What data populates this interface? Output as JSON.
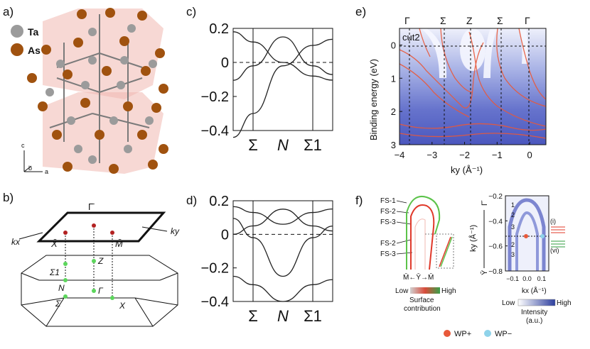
{
  "figure": {
    "panels": {
      "a": {
        "label": "a)",
        "legend": [
          {
            "symbol": "Ta",
            "color": "#9b9b9b"
          },
          {
            "symbol": "As",
            "color": "#a0520f"
          }
        ],
        "axes": [
          "c",
          "b",
          "a"
        ]
      },
      "b": {
        "label": "b)",
        "points": [
          "Γ̄",
          "X̄",
          "M̄",
          "Σ1",
          "Z",
          "N",
          "Γ",
          "Σ",
          "X"
        ],
        "axes": [
          "kx",
          "ky"
        ]
      },
      "c": {
        "label": "c)"
      },
      "d": {
        "label": "d)"
      },
      "e": {
        "label": "e)",
        "top_labels": [
          "Γ",
          "Σ",
          "Z",
          "Σ",
          "Γ"
        ],
        "cut_label": "cut2",
        "ylabel": "Binding energy (eV)",
        "xlabel": "ky (Å⁻¹)"
      },
      "f": {
        "label": "f)",
        "left_labels": [
          "FS-1",
          "FS-2",
          "FS-3",
          "FS-2",
          "FS-3"
        ],
        "bottom_path": "M̄←Ȳ→M̄",
        "colorbar_left": {
          "low": "Low",
          "high": "High",
          "caption1": "Surface",
          "caption2": "contribution"
        },
        "colorbar_right": {
          "low": "Low",
          "high": "High",
          "caption1": "Intensity",
          "caption2": "(a.u.)"
        },
        "right_ylabel": "ky (Å⁻¹)",
        "right_xlabel": "kx (Å⁻¹)",
        "right_top": "Γ̄",
        "right_bottom": "Ȳ",
        "arrows_left": [
          "1",
          "2",
          "3",
          "2",
          "3"
        ],
        "arrows_right": [
          "(i)",
          "(vi)"
        ],
        "legend": [
          {
            "label": "WP+",
            "color": "#e8593a"
          },
          {
            "label": "WP−",
            "color": "#8fd3ea"
          }
        ]
      }
    }
  },
  "chart_data": [
    {
      "type": "line",
      "id": "c",
      "title": "",
      "xlabel": "",
      "ylabel": "",
      "ylim": [
        -0.4,
        0.2
      ],
      "yticks": [
        "0.2",
        "0",
        "−0.2",
        "−0.4"
      ],
      "xticks": [
        "Σ",
        "N",
        "Σ1"
      ],
      "series": [
        {
          "values": [
            0.12,
            0.0,
            -0.08
          ]
        },
        {
          "values": [
            -0.02,
            0.15,
            -0.02
          ]
        },
        {
          "values": [
            -0.3,
            -0.02,
            0.1
          ]
        }
      ]
    },
    {
      "type": "line",
      "id": "d",
      "title": "",
      "xlabel": "",
      "ylabel": "",
      "ylim": [
        -0.4,
        0.2
      ],
      "yticks": [
        "0.2",
        "0",
        "−0.2",
        "−0.4"
      ],
      "xticks": [
        "Σ",
        "N",
        "Σ1"
      ],
      "series": [
        {
          "values": [
            0.13,
            0.06,
            0.13
          ]
        },
        {
          "values": [
            0.05,
            0.15,
            0.05
          ]
        },
        {
          "values": [
            -0.02,
            -0.25,
            -0.02
          ]
        },
        {
          "values": [
            -0.3,
            -0.4,
            -0.3
          ]
        }
      ]
    },
    {
      "type": "heatmap",
      "id": "e",
      "title": "",
      "xlabel": "ky (Å⁻¹)",
      "ylabel": "Binding energy (eV)",
      "xlim": [
        -4,
        0.5
      ],
      "ylim": [
        3,
        -0.5
      ],
      "xticks": [
        "−4",
        "−3",
        "−2",
        "−1",
        "0"
      ],
      "yticks": [
        "0",
        "1",
        "2",
        "3"
      ]
    },
    {
      "type": "heatmap",
      "id": "f-right",
      "title": "",
      "xlabel": "kx (Å⁻¹)",
      "ylabel": "ky (Å⁻¹)",
      "xlim": [
        -0.15,
        0.15
      ],
      "ylim": [
        -0.8,
        -0.2
      ],
      "xticks": [
        "−0.1",
        "0.0",
        "0.1"
      ],
      "yticks": [
        "−0.2",
        "−0.4",
        "−0.6",
        "−0.8"
      ]
    }
  ]
}
